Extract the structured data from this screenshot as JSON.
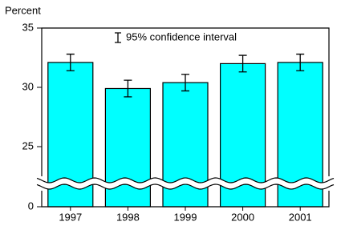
{
  "chart_data": {
    "type": "bar",
    "y_label": "Percent",
    "legend_label": "95% confidence interval",
    "categories": [
      "1997",
      "1998",
      "1999",
      "2000",
      "2001"
    ],
    "values": [
      32.1,
      29.9,
      30.4,
      32.0,
      32.1
    ],
    "errors": [
      0.7,
      0.7,
      0.7,
      0.7,
      0.7
    ],
    "color": "#00ffff",
    "ylim": [
      0,
      35
    ],
    "yticks": [
      0,
      25,
      30,
      35
    ],
    "axis_break": true
  }
}
